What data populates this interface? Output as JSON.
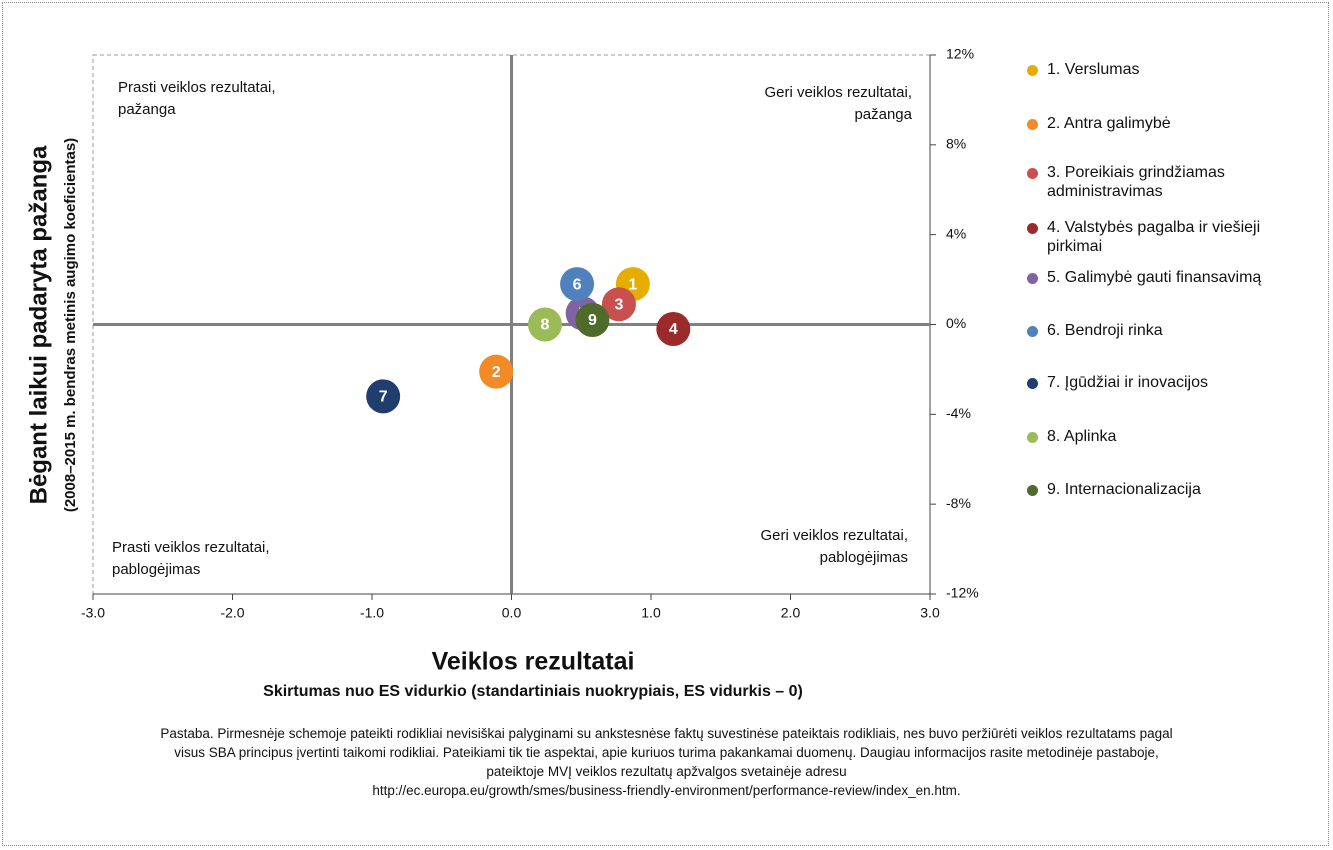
{
  "chart_data": {
    "type": "scatter",
    "y_title": [
      "Bėgant laikui padaryta pažanga",
      "(2008–2015 m. bendras metinis augimo koeficientas)"
    ],
    "x_title": "Veiklos rezultatai",
    "x_subtitle": "Skirtumas nuo ES vidurkio (standartiniais nuokrypiais, ES vidurkis – 0)",
    "annotations": [
      [
        "Prasti veiklos rezultatai,",
        " pažanga"
      ],
      [
        "Geri veiklos rezultatai,",
        "pažanga"
      ],
      [
        "Prasti veiklos rezultatai,",
        "pablogėjimas"
      ],
      [
        "Geri veiklos rezultatai,",
        "pablogėjimas"
      ]
    ],
    "xlim": [
      -3,
      3
    ],
    "xticks": [
      {
        "value": -3,
        "label": "-3.0"
      },
      {
        "value": -2,
        "label": "-2.0"
      },
      {
        "value": -1,
        "label": "-1.0"
      },
      {
        "value": 0,
        "label": "0.0"
      },
      {
        "value": 1,
        "label": "1.0"
      },
      {
        "value": 2,
        "label": "2.0"
      },
      {
        "value": 3,
        "label": "3.0"
      }
    ],
    "ylim": [
      -12,
      12
    ],
    "yticks": [
      {
        "value": 12,
        "label": "12%"
      },
      {
        "value": 8,
        "label": "8%"
      },
      {
        "value": 4,
        "label": "4%"
      },
      {
        "value": 0,
        "label": "0%"
      },
      {
        "value": -4,
        "label": "-4%"
      },
      {
        "value": -8,
        "label": "-8%"
      },
      {
        "value": -12,
        "label": "-12%"
      }
    ],
    "series": [
      {
        "name": "1. Verslumas",
        "label": "1",
        "color": "#e6ac00",
        "x": [
          0.87
        ],
        "values": [
          1.8
        ]
      },
      {
        "name": "2. Antra galimybė",
        "label": "2",
        "color": "#f28a28",
        "x": [
          -0.11
        ],
        "values": [
          -2.1
        ]
      },
      {
        "name": "3. Poreikiais grindžiamas administravimas",
        "label": "3",
        "color": "#c9504f",
        "x": [
          0.77
        ],
        "values": [
          0.9
        ]
      },
      {
        "name": "4. Valstybės pagalba ir viešieji pirkimai",
        "label": "4",
        "color": "#9b2b2b",
        "x": [
          1.16
        ],
        "values": [
          -0.2
        ]
      },
      {
        "name": "5. Galimybė gauti finansavimą",
        "label": "5",
        "color": "#8064a2",
        "x": [
          0.51
        ],
        "values": [
          0.5
        ]
      },
      {
        "name": "6. Bendroji rinka",
        "label": "6",
        "color": "#4f81bd",
        "x": [
          0.47
        ],
        "values": [
          1.8
        ]
      },
      {
        "name": "7. Įgūdžiai ir inovacijos",
        "label": "7",
        "color": "#1f3e6e",
        "x": [
          -0.92
        ],
        "values": [
          -3.2
        ]
      },
      {
        "name": "8. Aplinka",
        "label": "8",
        "color": "#9bbb59",
        "x": [
          0.24
        ],
        "values": [
          0.0
        ]
      },
      {
        "name": "9. Internacionalizacija",
        "label": "9",
        "color": "#4f6b2b",
        "x": [
          0.58
        ],
        "values": [
          0.2
        ]
      }
    ]
  },
  "note": [
    "Pastaba. Pirmesnėje schemoje pateikti rodikliai nevisiškai palyginami su ankstesnėse faktų suvestinėse pateiktais rodikliais, nes buvo peržiūrėti veiklos rezultatams pagal",
    "visus SBA principus įvertinti taikomi rodikliai. Pateikiami tik tie aspektai, apie kuriuos turima pakankamai duomenų. Daugiau informacijos rasite metodinėje pastaboje,",
    "pateiktoje MVĮ veiklos rezultatų apžvalgos svetainėje adresu",
    "http://ec.europa.eu/growth/smes/business-friendly-environment/performance-review/index_en.htm."
  ]
}
